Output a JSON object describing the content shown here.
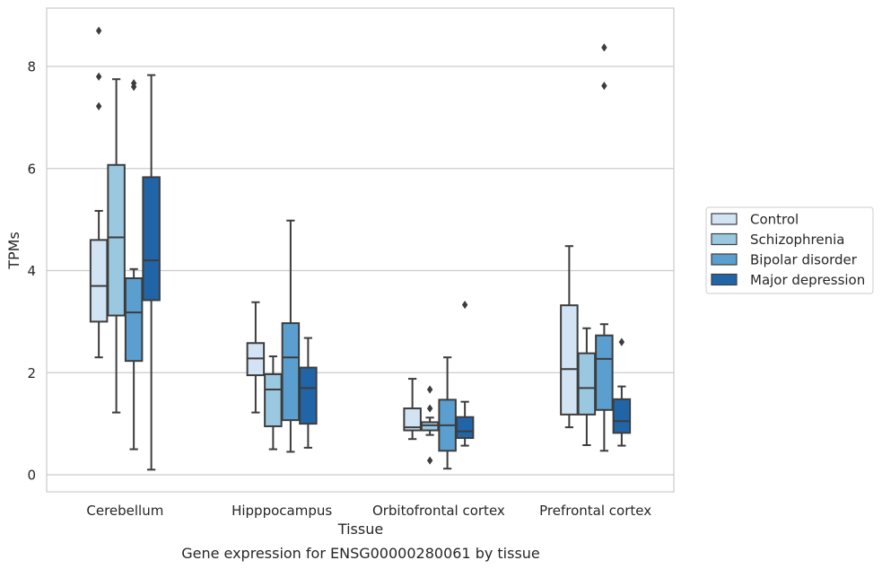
{
  "chart_data": {
    "type": "box",
    "title": "",
    "xlabel": "Tissue",
    "ylabel": "TPMs",
    "caption": "Gene expression for ENSG00000280061 by tissue",
    "categories": [
      "Cerebellum",
      "Hipppocampus",
      "Orbitofrontal cortex",
      "Prefrontal cortex"
    ],
    "ylim": [
      -0.3,
      9.2
    ],
    "yticks": [
      0,
      2,
      4,
      6,
      8
    ],
    "grid": "horizontal",
    "legend_position": "right",
    "series": [
      {
        "name": "Control",
        "color": "#d2e3f3",
        "boxes": [
          {
            "whislo": 2.3,
            "q1": 3.0,
            "med": 3.7,
            "q3": 4.6,
            "whishi": 5.17,
            "fliers": [
              7.22,
              7.8,
              8.7
            ]
          },
          {
            "whislo": 1.22,
            "q1": 1.95,
            "med": 2.28,
            "q3": 2.58,
            "whishi": 3.38,
            "fliers": []
          },
          {
            "whislo": 0.7,
            "q1": 0.87,
            "med": 0.93,
            "q3": 1.3,
            "whishi": 1.88,
            "fliers": []
          },
          {
            "whislo": 0.93,
            "q1": 1.18,
            "med": 2.07,
            "q3": 3.32,
            "whishi": 4.48,
            "fliers": []
          }
        ]
      },
      {
        "name": "Schizophrenia",
        "color": "#9ac8e0",
        "boxes": [
          {
            "whislo": 1.22,
            "q1": 3.12,
            "med": 4.65,
            "q3": 6.07,
            "whishi": 7.75,
            "fliers": []
          },
          {
            "whislo": 0.5,
            "q1": 0.95,
            "med": 1.67,
            "q3": 1.97,
            "whishi": 2.32,
            "fliers": []
          },
          {
            "whislo": 0.78,
            "q1": 0.87,
            "med": 0.97,
            "q3": 1.03,
            "whishi": 1.12,
            "fliers": [
              0.28,
              1.3,
              1.67
            ]
          },
          {
            "whislo": 0.58,
            "q1": 1.18,
            "med": 1.7,
            "q3": 2.38,
            "whishi": 2.87,
            "fliers": []
          }
        ]
      },
      {
        "name": "Bipolar disorder",
        "color": "#5a9fcf",
        "boxes": [
          {
            "whislo": 0.5,
            "q1": 2.23,
            "med": 3.18,
            "q3": 3.85,
            "whishi": 4.03,
            "fliers": [
              7.6,
              7.67
            ]
          },
          {
            "whislo": 0.45,
            "q1": 1.07,
            "med": 2.3,
            "q3": 2.97,
            "whishi": 4.98,
            "fliers": []
          },
          {
            "whislo": 0.12,
            "q1": 0.47,
            "med": 0.97,
            "q3": 1.47,
            "whishi": 2.3,
            "fliers": []
          },
          {
            "whislo": 0.47,
            "q1": 1.27,
            "med": 2.27,
            "q3": 2.73,
            "whishi": 2.95,
            "fliers": [
              7.62,
              8.37
            ]
          }
        ]
      },
      {
        "name": "Major depression",
        "color": "#2165a9",
        "boxes": [
          {
            "whislo": 0.1,
            "q1": 3.42,
            "med": 4.2,
            "q3": 5.83,
            "whishi": 7.83,
            "fliers": []
          },
          {
            "whislo": 0.53,
            "q1": 1.0,
            "med": 1.7,
            "q3": 2.1,
            "whishi": 2.68,
            "fliers": []
          },
          {
            "whislo": 0.57,
            "q1": 0.72,
            "med": 0.85,
            "q3": 1.13,
            "whishi": 1.43,
            "fliers": [
              3.33
            ]
          },
          {
            "whislo": 0.57,
            "q1": 0.82,
            "med": 1.05,
            "q3": 1.48,
            "whishi": 1.73,
            "fliers": [
              2.6
            ]
          }
        ]
      }
    ]
  }
}
